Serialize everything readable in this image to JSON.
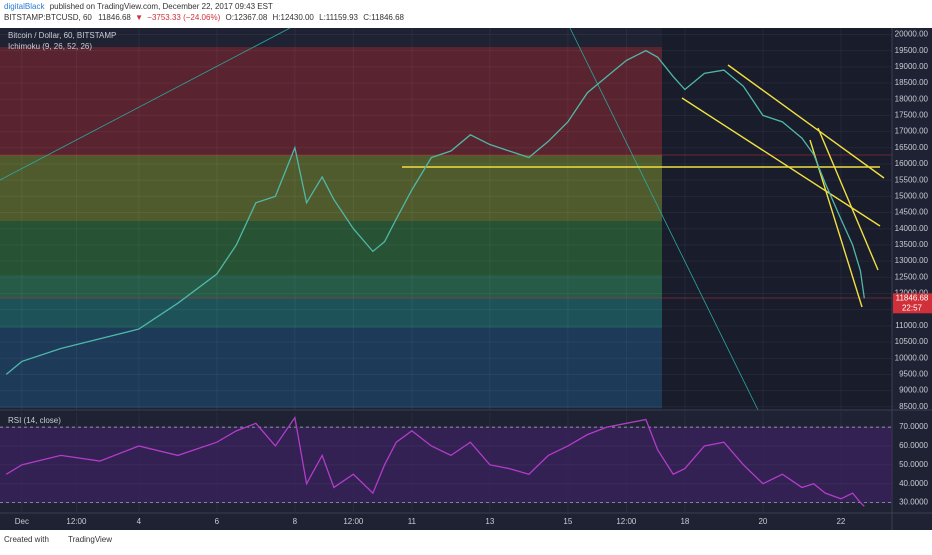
{
  "header": {
    "author": "digitalBlack",
    "published": "published on TradingView.com, December 22, 2017 09:43 EST"
  },
  "quote": {
    "symbol": "BITSTAMP:BTCUSD, 60",
    "last": "11846.68",
    "change": "−3753.33 (−24.06%)",
    "open": "O:12367.08",
    "high": "H:12430.00",
    "low": "L:11159.93",
    "close": "C:11846.68",
    "countdown": "22:57"
  },
  "footer": {
    "created": "Created with",
    "brand": "TradingView"
  },
  "chart_data": [
    {
      "type": "line",
      "title": "Bitcoin / Dollar, 60, BITSTAMP",
      "subtitle": "Ichimoku (9, 26, 52, 26)",
      "color": "#4fb8a8",
      "x": [
        -0.4,
        0,
        1,
        2,
        3,
        4,
        5,
        5.5,
        6,
        6.5,
        7,
        7.3,
        7.7,
        8,
        8.5,
        9,
        9.3,
        9.6,
        10,
        10.5,
        11,
        11.5,
        12,
        12.5,
        13,
        13.5,
        14,
        14.5,
        15,
        15.5,
        16,
        16.3,
        16.7,
        17,
        17.5,
        18,
        18.5,
        19,
        19.5,
        20,
        20.3,
        20.6,
        21,
        21.3,
        21.5,
        21.6
      ],
      "values": [
        9500,
        9900,
        10300,
        10600,
        10900,
        11700,
        12600,
        13500,
        14800,
        15000,
        16500,
        14800,
        15600,
        14900,
        14000,
        13300,
        13600,
        14300,
        15200,
        16200,
        16400,
        16900,
        16600,
        16400,
        16200,
        16700,
        17300,
        18200,
        18700,
        19200,
        19500,
        19300,
        18700,
        18300,
        18800,
        18900,
        18400,
        17500,
        17300,
        16800,
        16300,
        15400,
        14300,
        13500,
        12700,
        11850
      ],
      "xlim": [
        -0.56,
        22.31
      ],
      "ylim": [
        8400,
        20200
      ],
      "xticks": [
        {
          "value": 0,
          "label": "Dec"
        },
        {
          "value": 1.4,
          "label": "12:00"
        },
        {
          "value": 3,
          "label": "4"
        },
        {
          "value": 5,
          "label": "6"
        },
        {
          "value": 7,
          "label": "8"
        },
        {
          "value": 8.5,
          "label": "12:00"
        },
        {
          "value": 10,
          "label": "11"
        },
        {
          "value": 12,
          "label": "13"
        },
        {
          "value": 14,
          "label": "15"
        },
        {
          "value": 15.5,
          "label": "12:00"
        },
        {
          "value": 17,
          "label": "18"
        },
        {
          "value": 19,
          "label": "20"
        },
        {
          "value": 21,
          "label": "22"
        }
      ],
      "yticks": [
        {
          "value": 8500,
          "label": "8500.00"
        },
        {
          "value": 9000,
          "label": "9000.00"
        },
        {
          "value": 9500,
          "label": "9500.00"
        },
        {
          "value": 10000,
          "label": "10000.00"
        },
        {
          "value": 10500,
          "label": "10500.00"
        },
        {
          "value": 11000,
          "label": "11000.00"
        },
        {
          "value": 11500,
          "label": "11500.00"
        },
        {
          "value": 12000,
          "label": "12000.00"
        },
        {
          "value": 12500,
          "label": "12500.00"
        },
        {
          "value": 13000,
          "label": "13000.00"
        },
        {
          "value": 13500,
          "label": "13500.00"
        },
        {
          "value": 14000,
          "label": "14000.00"
        },
        {
          "value": 14500,
          "label": "14500.00"
        },
        {
          "value": 15000,
          "label": "15000.00"
        },
        {
          "value": 15500,
          "label": "15500.00"
        },
        {
          "value": 16000,
          "label": "16000.00"
        },
        {
          "value": 16500,
          "label": "16500.00"
        },
        {
          "value": 17000,
          "label": "17000.00"
        },
        {
          "value": 17500,
          "label": "17500.00"
        },
        {
          "value": 18000,
          "label": "18000.00"
        },
        {
          "value": 18500,
          "label": "18500.00"
        },
        {
          "value": 19000,
          "label": "19000.00"
        },
        {
          "value": 19500,
          "label": "19500.00"
        },
        {
          "value": 20000,
          "label": "20000.00"
        }
      ],
      "grid": true
    },
    {
      "type": "line",
      "title": "RSI (14, close)",
      "color": "#b23cc8",
      "x": [
        -0.4,
        0,
        1,
        2,
        3,
        4,
        5,
        5.5,
        6,
        6.5,
        7,
        7.3,
        7.7,
        8,
        8.5,
        9,
        9.3,
        9.6,
        10,
        10.5,
        11,
        11.5,
        12,
        12.5,
        13,
        13.5,
        14,
        14.5,
        15,
        15.5,
        16,
        16.3,
        16.7,
        17,
        17.5,
        18,
        18.5,
        19,
        19.5,
        20,
        20.3,
        20.6,
        21,
        21.3,
        21.5,
        21.6
      ],
      "values": [
        45,
        50,
        55,
        52,
        60,
        55,
        62,
        68,
        72,
        60,
        75,
        40,
        55,
        38,
        45,
        35,
        50,
        62,
        68,
        60,
        55,
        62,
        50,
        48,
        45,
        55,
        60,
        66,
        70,
        72,
        74,
        58,
        45,
        48,
        60,
        62,
        50,
        40,
        45,
        38,
        40,
        35,
        32,
        35,
        30,
        28
      ],
      "xlim": [
        -0.56,
        22.31
      ],
      "ylim": [
        25,
        78
      ],
      "yticks": [
        {
          "value": 30,
          "label": "30.0000"
        },
        {
          "value": 40,
          "label": "40.0000"
        },
        {
          "value": 50,
          "label": "50.0000"
        },
        {
          "value": 60,
          "label": "60.0000"
        },
        {
          "value": 70,
          "label": "70.0000"
        }
      ],
      "grid": true
    }
  ]
}
